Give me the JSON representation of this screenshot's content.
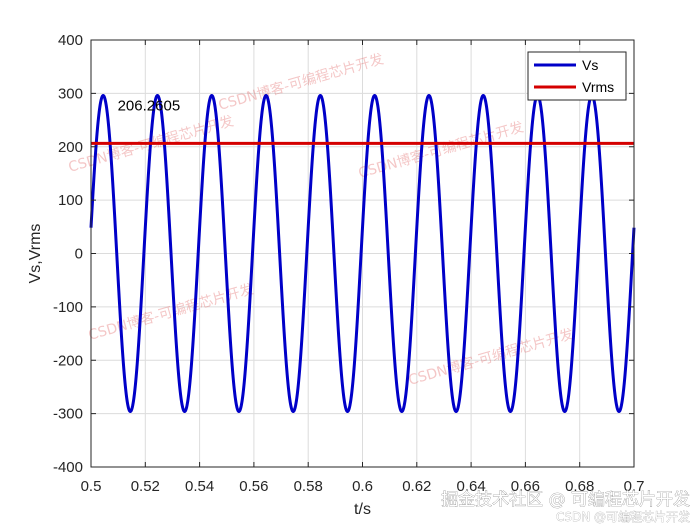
{
  "chart_data": {
    "type": "line",
    "xlabel": "t/s",
    "ylabel": "Vs,Vrms",
    "xlim": [
      0.5,
      0.7
    ],
    "ylim": [
      -400,
      400
    ],
    "xticks": [
      "0.5",
      "0.52",
      "0.54",
      "0.56",
      "0.58",
      "0.6",
      "0.62",
      "0.64",
      "0.66",
      "0.68",
      "0.7"
    ],
    "yticks": [
      "400",
      "300",
      "200",
      "100",
      "0",
      "-100",
      "-200",
      "-300",
      "-400"
    ],
    "grid": true,
    "legend_position": "top-right",
    "series": [
      {
        "name": "Vs",
        "color": "#0000c8",
        "kind": "sine",
        "amplitude": 296,
        "frequency_hz": 50,
        "phase_deg": 9.4,
        "x_start": 0.5,
        "x_end": 0.7
      },
      {
        "name": "Vrms",
        "color": "#d40000",
        "kind": "constant",
        "value": 206.2605,
        "x_start": 0.5,
        "x_end": 0.7
      }
    ],
    "annotations": [
      {
        "text": "206.2605",
        "x": 0.5098,
        "y": 277
      }
    ]
  },
  "watermarks": [
    "CSDN博客-可编程芯片开发",
    "CSDN博客-可编程芯片开发",
    "CSDN博客-可编程芯片开发",
    "CSDN博客-可编程芯片开发",
    "CSDN博客-可编程芯片开发"
  ],
  "footer": {
    "main": "掘金技术社区 @ 可编程芯片开发",
    "sub": "CSDN @可编程芯片开发"
  }
}
